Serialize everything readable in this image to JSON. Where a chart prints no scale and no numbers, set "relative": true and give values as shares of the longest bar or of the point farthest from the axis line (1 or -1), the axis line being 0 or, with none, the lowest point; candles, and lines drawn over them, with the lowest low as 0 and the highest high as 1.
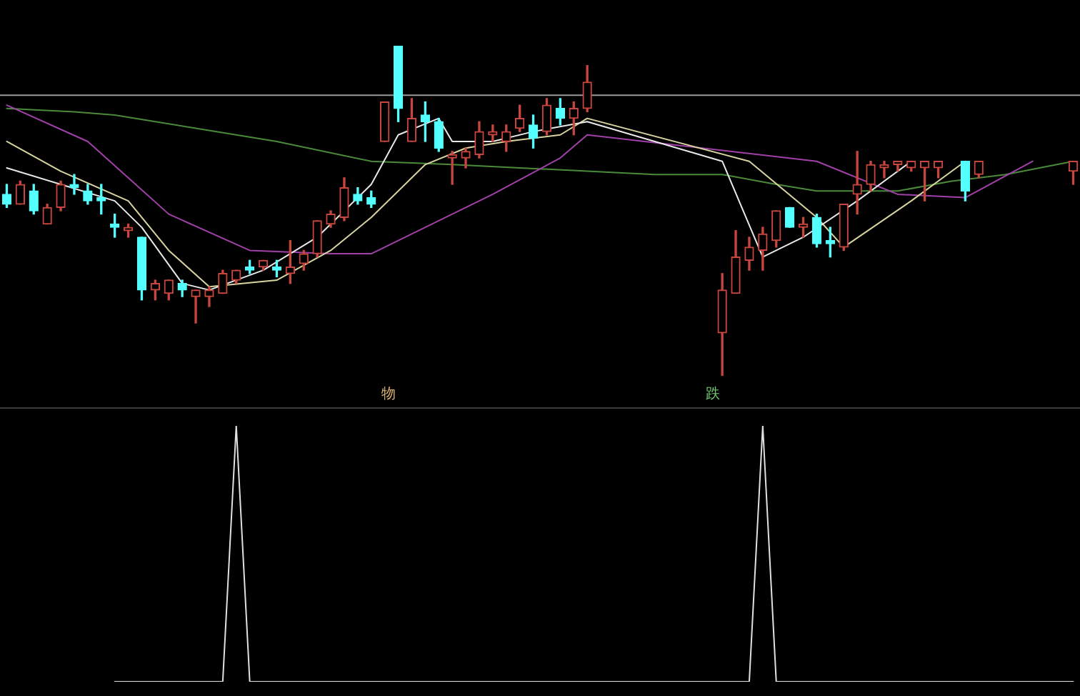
{
  "chart_data": [
    {
      "type": "candlestick",
      "relative": true,
      "tick_labels": false,
      "categories": [
        null,
        null,
        null,
        null,
        null,
        null,
        null,
        null,
        null,
        null,
        null,
        null,
        null,
        null,
        null,
        null,
        null,
        null,
        null,
        null,
        null,
        null,
        null,
        null,
        null,
        null,
        null,
        null,
        null,
        null,
        null,
        null,
        null,
        null,
        null,
        null,
        null,
        null,
        null,
        null,
        null,
        null,
        null,
        null,
        null,
        null,
        null,
        null,
        null,
        null,
        null,
        null,
        null,
        null,
        null,
        null,
        null,
        null,
        null,
        null,
        null,
        null,
        null,
        null,
        null,
        null,
        null,
        null,
        null,
        null,
        null,
        null,
        null,
        null,
        null,
        null,
        null,
        null,
        null,
        null
      ],
      "ohlc": [
        [
          0.55,
          0.58,
          0.51,
          0.52
        ],
        [
          0.52,
          0.59,
          0.52,
          0.58
        ],
        [
          0.56,
          0.58,
          0.49,
          0.5
        ],
        [
          0.46,
          0.52,
          0.46,
          0.51
        ],
        [
          0.51,
          0.59,
          0.5,
          0.58
        ],
        [
          0.58,
          0.61,
          0.55,
          0.57
        ],
        [
          0.56,
          0.58,
          0.52,
          0.53
        ],
        [
          0.54,
          0.58,
          0.49,
          0.53
        ],
        [
          0.46,
          0.49,
          0.42,
          0.45
        ],
        [
          0.44,
          0.46,
          0.42,
          0.45
        ],
        [
          0.42,
          0.42,
          0.23,
          0.26
        ],
        [
          0.26,
          0.29,
          0.23,
          0.28
        ],
        [
          0.25,
          0.29,
          0.23,
          0.29
        ],
        [
          0.28,
          0.29,
          0.24,
          0.26
        ],
        [
          0.24,
          0.26,
          0.16,
          0.26
        ],
        [
          0.24,
          0.27,
          0.21,
          0.26
        ],
        [
          0.25,
          0.32,
          0.25,
          0.31
        ],
        [
          0.29,
          0.32,
          0.28,
          0.32
        ],
        [
          0.33,
          0.35,
          0.31,
          0.32
        ],
        [
          0.33,
          0.35,
          0.32,
          0.35
        ],
        [
          0.33,
          0.35,
          0.3,
          0.32
        ],
        [
          0.31,
          0.41,
          0.28,
          0.33
        ],
        [
          0.34,
          0.38,
          0.32,
          0.37
        ],
        [
          0.37,
          0.47,
          0.36,
          0.47
        ],
        [
          0.46,
          0.5,
          0.45,
          0.49
        ],
        [
          0.48,
          0.6,
          0.47,
          0.57
        ],
        [
          0.55,
          0.57,
          0.52,
          0.53
        ],
        [
          0.54,
          0.56,
          0.51,
          0.52
        ],
        [
          0.71,
          0.83,
          0.71,
          0.83
        ],
        [
          1,
          1,
          0.77,
          0.81
        ],
        [
          0.71,
          0.84,
          0.71,
          0.78
        ],
        [
          0.79,
          0.83,
          0.71,
          0.77
        ],
        [
          0.77,
          0.78,
          0.68,
          0.69
        ],
        [
          0.66,
          0.68,
          0.58,
          0.67
        ],
        [
          0.66,
          0.69,
          0.63,
          0.68
        ],
        [
          0.67,
          0.77,
          0.66,
          0.74
        ],
        [
          0.73,
          0.76,
          0.71,
          0.74
        ],
        [
          0.71,
          0.76,
          0.68,
          0.74
        ],
        [
          0.75,
          0.82,
          0.74,
          0.78
        ],
        [
          0.76,
          0.79,
          0.69,
          0.72
        ],
        [
          0.74,
          0.84,
          0.73,
          0.82
        ],
        [
          0.81,
          0.84,
          0.76,
          0.78
        ],
        [
          0.78,
          0.83,
          0.73,
          0.81
        ],
        [
          0.81,
          0.94,
          0.8,
          0.89
        ],
        null,
        null,
        null,
        null,
        null,
        null,
        null,
        null,
        null,
        [
          0.13,
          0.31,
          0,
          0.26
        ],
        [
          0.25,
          0.44,
          0.25,
          0.36
        ],
        [
          0.35,
          0.42,
          0.32,
          0.39
        ],
        [
          0.38,
          0.45,
          0.32,
          0.43
        ],
        [
          0.41,
          0.5,
          0.39,
          0.5
        ],
        [
          0.51,
          0.51,
          0.45,
          0.45
        ],
        [
          0.45,
          0.48,
          0.42,
          0.46
        ],
        [
          0.48,
          0.49,
          0.39,
          0.4
        ],
        [
          0.41,
          0.45,
          0.36,
          0.4
        ],
        [
          0.39,
          0.52,
          0.38,
          0.52
        ],
        [
          0.55,
          0.68,
          0.49,
          0.58
        ],
        [
          0.58,
          0.65,
          0.56,
          0.64
        ],
        [
          0.63,
          0.65,
          0.6,
          0.64
        ],
        [
          0.64,
          0.65,
          0.62,
          0.65
        ],
        [
          0.63,
          0.65,
          0.62,
          0.65
        ],
        [
          0.63,
          0.65,
          0.53,
          0.65
        ],
        [
          0.63,
          0.65,
          0.6,
          0.65
        ],
        null,
        [
          0.65,
          0.65,
          0.53,
          0.56
        ],
        [
          0.61,
          0.65,
          0.6,
          0.65
        ],
        null,
        null,
        null,
        null,
        null,
        null,
        [
          0.62,
          0.65,
          0.58,
          0.65
        ]
      ],
      "colors": [
        "#54ffff",
        "#c8463e",
        "#54ffff",
        "#c8463e",
        "#c8463e",
        "#54ffff",
        "#54ffff",
        "#54ffff",
        "#54ffff",
        "#c8463e",
        "#54ffff",
        "#c8463e",
        "#c8463e",
        "#54ffff",
        "#c8463e",
        "#c8463e",
        "#c8463e",
        "#c8463e",
        "#54ffff",
        "#c8463e",
        "#54ffff",
        "#c8463e",
        "#c8463e",
        "#c8463e",
        "#c8463e",
        "#c8463e",
        "#54ffff",
        "#54ffff",
        "#c8463e",
        "#54ffff",
        "#c8463e",
        "#54ffff",
        "#54ffff",
        "#c8463e",
        "#c8463e",
        "#c8463e",
        "#c8463e",
        "#c8463e",
        "#c8463e",
        "#54ffff",
        "#c8463e",
        "#54ffff",
        "#c8463e",
        "#c8463e",
        null,
        null,
        null,
        null,
        null,
        null,
        null,
        null,
        null,
        "#c8463e",
        "#c8463e",
        "#c8463e",
        "#c8463e",
        "#c8463e",
        "#54ffff",
        "#c8463e",
        "#54ffff",
        "#54ffff",
        "#c8463e",
        "#c8463e",
        "#c8463e",
        "#c8463e",
        "#c8463e",
        "#c8463e",
        "#c8463e",
        "#c8463e",
        null,
        "#54ffff",
        "#c8463e",
        null,
        null,
        null,
        null,
        null,
        null,
        "#c8463e"
      ],
      "series": [
        {
          "type": "line",
          "color": "#e8e8e8",
          "values": [
            0.63,
            null,
            null,
            null,
            0.58,
            null,
            null,
            null,
            0.53,
            null,
            0.45,
            null,
            null,
            0.28,
            null,
            0.26,
            null,
            null,
            null,
            0.32,
            null,
            null,
            null,
            0.42,
            null,
            null,
            null,
            0.58,
            null,
            0.73,
            null,
            null,
            0.78,
            0.71,
            null,
            null,
            0.71,
            null,
            null,
            0.74,
            null,
            null,
            null,
            0.77,
            null,
            null,
            null,
            null,
            null,
            null,
            null,
            null,
            null,
            0.65,
            null,
            null,
            0.36,
            null,
            null,
            0.42,
            null,
            null,
            null,
            0.53,
            null,
            null,
            null,
            0.65,
            null,
            null,
            null,
            null,
            null,
            null,
            null,
            null,
            null,
            null,
            null,
            null
          ]
        },
        {
          "type": "line",
          "color": "#d8d4a0",
          "values": [
            0.71,
            null,
            null,
            null,
            0.62,
            null,
            null,
            null,
            null,
            0.53,
            null,
            null,
            0.38,
            null,
            null,
            0.27,
            null,
            null,
            null,
            null,
            0.29,
            null,
            null,
            null,
            0.38,
            null,
            null,
            0.48,
            null,
            null,
            null,
            0.64,
            null,
            null,
            0.69,
            null,
            null,
            0.71,
            null,
            null,
            null,
            0.73,
            null,
            0.78,
            null,
            null,
            null,
            null,
            null,
            null,
            null,
            null,
            null,
            null,
            null,
            0.65,
            null,
            null,
            null,
            null,
            0.48,
            null,
            0.39,
            null,
            null,
            null,
            null,
            0.53,
            null,
            null,
            null,
            0.65,
            null,
            null,
            null,
            null,
            null,
            null,
            null,
            null
          ]
        },
        {
          "type": "line",
          "color": "#a040a8",
          "values": [
            0.82,
            null,
            null,
            null,
            null,
            null,
            0.71,
            null,
            null,
            null,
            null,
            null,
            0.49,
            null,
            null,
            null,
            null,
            null,
            0.38,
            null,
            null,
            null,
            null,
            null,
            0.37,
            null,
            null,
            0.37,
            null,
            null,
            null,
            0.45,
            null,
            null,
            null,
            null,
            0.55,
            null,
            null,
            null,
            null,
            0.66,
            null,
            0.73,
            null,
            null,
            null,
            null,
            null,
            null,
            null,
            null,
            null,
            null,
            null,
            null,
            null,
            null,
            null,
            null,
            0.65,
            null,
            null,
            null,
            null,
            null,
            0.55,
            null,
            null,
            null,
            null,
            0.54,
            null,
            null,
            null,
            null,
            0.65,
            null,
            null,
            null
          ]
        },
        {
          "type": "line",
          "color": "#4a8a3a",
          "values": [
            0.81,
            null,
            null,
            null,
            null,
            0.8,
            null,
            null,
            0.79,
            null,
            null,
            null,
            null,
            null,
            0.75,
            null,
            null,
            null,
            null,
            null,
            0.71,
            null,
            null,
            null,
            null,
            null,
            null,
            0.65,
            null,
            null,
            null,
            null,
            null,
            0.64,
            null,
            null,
            null,
            null,
            0.63,
            null,
            null,
            null,
            null,
            0.62,
            null,
            null,
            null,
            null,
            0.61,
            null,
            null,
            null,
            null,
            0.61,
            null,
            null,
            null,
            0.58,
            null,
            null,
            0.56,
            null,
            null,
            null,
            null,
            null,
            0.56,
            null,
            null,
            null,
            0.59,
            null,
            null,
            null,
            0.61,
            null,
            null,
            null,
            null,
            0.65
          ]
        }
      ],
      "ref_lines": [
        {
          "axis": "y",
          "value": 0.85,
          "color": "#9a9a9a"
        }
      ],
      "annotations": [
        "物",
        "跌"
      ]
    },
    {
      "type": "line",
      "relative": true,
      "tick_labels": false,
      "color": "#e0e0e0",
      "categories": [
        null,
        null,
        null,
        null,
        null,
        null,
        null,
        null,
        null,
        null,
        null,
        null,
        null,
        null,
        null,
        null,
        null,
        null,
        null,
        null,
        null,
        null,
        null,
        null,
        null,
        null,
        null,
        null,
        null,
        null,
        null,
        null,
        null,
        null,
        null,
        null,
        null,
        null,
        null,
        null,
        null,
        null,
        null,
        null,
        null,
        null,
        null,
        null,
        null,
        null,
        null,
        null,
        null,
        null,
        null,
        null,
        null,
        null,
        null,
        null,
        null,
        null,
        null,
        null,
        null,
        null,
        null,
        null,
        null,
        null,
        null,
        null,
        null,
        null,
        null,
        null,
        null,
        null,
        null,
        null
      ],
      "values": [
        null,
        null,
        null,
        null,
        null,
        null,
        null,
        null,
        0,
        0,
        0,
        0,
        0,
        0,
        0,
        0,
        0,
        1,
        0,
        0,
        0,
        0,
        0,
        0,
        0,
        0,
        0,
        0,
        0,
        0,
        0,
        0,
        0,
        0,
        0,
        0,
        0,
        0,
        0,
        0,
        0,
        0,
        0,
        0,
        0,
        0,
        0,
        0,
        0,
        0,
        0,
        0,
        0,
        0,
        0,
        0,
        1,
        0,
        0,
        0,
        0,
        0,
        0,
        0,
        0,
        0,
        0,
        0,
        0,
        0,
        0,
        0,
        0,
        0,
        0,
        0,
        0,
        0,
        0,
        0
      ]
    }
  ]
}
